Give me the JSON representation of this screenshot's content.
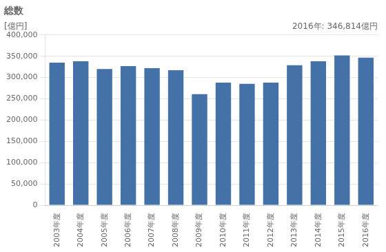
{
  "chart_data": {
    "type": "bar",
    "title": "総数",
    "ylabel": "[億円]",
    "annotation": "2016年: 346,814億円",
    "categories": [
      "2003年度",
      "2004年度",
      "2005年度",
      "2006年度",
      "2007年度",
      "2008年度",
      "2009年度",
      "2010年度",
      "2011年度",
      "2012年度",
      "2013年度",
      "2014年度",
      "2015年度",
      "2016年度"
    ],
    "values": [
      335000,
      338000,
      320000,
      327000,
      322000,
      317000,
      261000,
      288000,
      285000,
      288000,
      329000,
      338000,
      352000,
      346814
    ],
    "color": "#4472a8",
    "ylim": [
      0,
      400000
    ],
    "yticks": [
      0,
      {
        "value": 50000,
        "label": "50,000"
      },
      {
        "value": 100000,
        "label": "100,000"
      },
      {
        "value": 150000,
        "label": "150,000"
      },
      {
        "value": 200000,
        "label": "200,000"
      },
      {
        "value": 250000,
        "label": "250,000"
      },
      {
        "value": 300000,
        "label": "300,000"
      },
      {
        "value": 350000,
        "label": "350,000"
      },
      {
        "value": 400000,
        "label": "400,000"
      }
    ],
    "grid": true
  }
}
